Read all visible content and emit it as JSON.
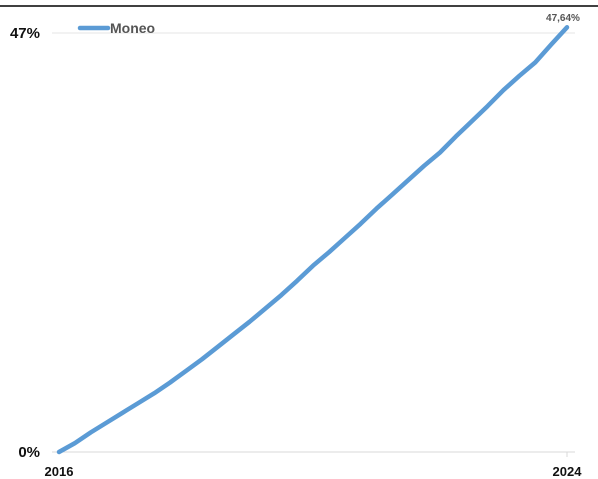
{
  "chart_data": {
    "type": "line",
    "title": "",
    "xlabel": "",
    "ylabel": "",
    "x_ticks": [
      "2016",
      "2024"
    ],
    "y_ticks": [
      "0%",
      "47%"
    ],
    "xlim": [
      2016,
      2024
    ],
    "ylim": [
      0,
      47
    ],
    "grid": "horizontal",
    "legend_position": "top-left",
    "series": [
      {
        "name": "Moneo",
        "color": "#5b9bd5",
        "end_label": "47,64%",
        "x": [
          2016.0,
          2016.25,
          2016.5,
          2016.75,
          2017.0,
          2017.25,
          2017.5,
          2017.75,
          2018.0,
          2018.25,
          2018.5,
          2018.75,
          2019.0,
          2019.25,
          2019.5,
          2019.75,
          2020.0,
          2020.25,
          2020.5,
          2020.75,
          2021.0,
          2021.25,
          2021.5,
          2021.75,
          2022.0,
          2022.25,
          2022.5,
          2022.75,
          2023.0,
          2023.25,
          2023.5,
          2023.75,
          2024.0
        ],
        "values": [
          0.0,
          1.0,
          2.2,
          3.3,
          4.4,
          5.5,
          6.6,
          7.8,
          9.1,
          10.4,
          11.8,
          13.2,
          14.6,
          16.1,
          17.6,
          19.2,
          20.9,
          22.4,
          24.0,
          25.6,
          27.3,
          28.9,
          30.5,
          32.1,
          33.6,
          35.4,
          37.1,
          38.8,
          40.6,
          42.2,
          43.7,
          45.7,
          47.64
        ]
      }
    ]
  }
}
